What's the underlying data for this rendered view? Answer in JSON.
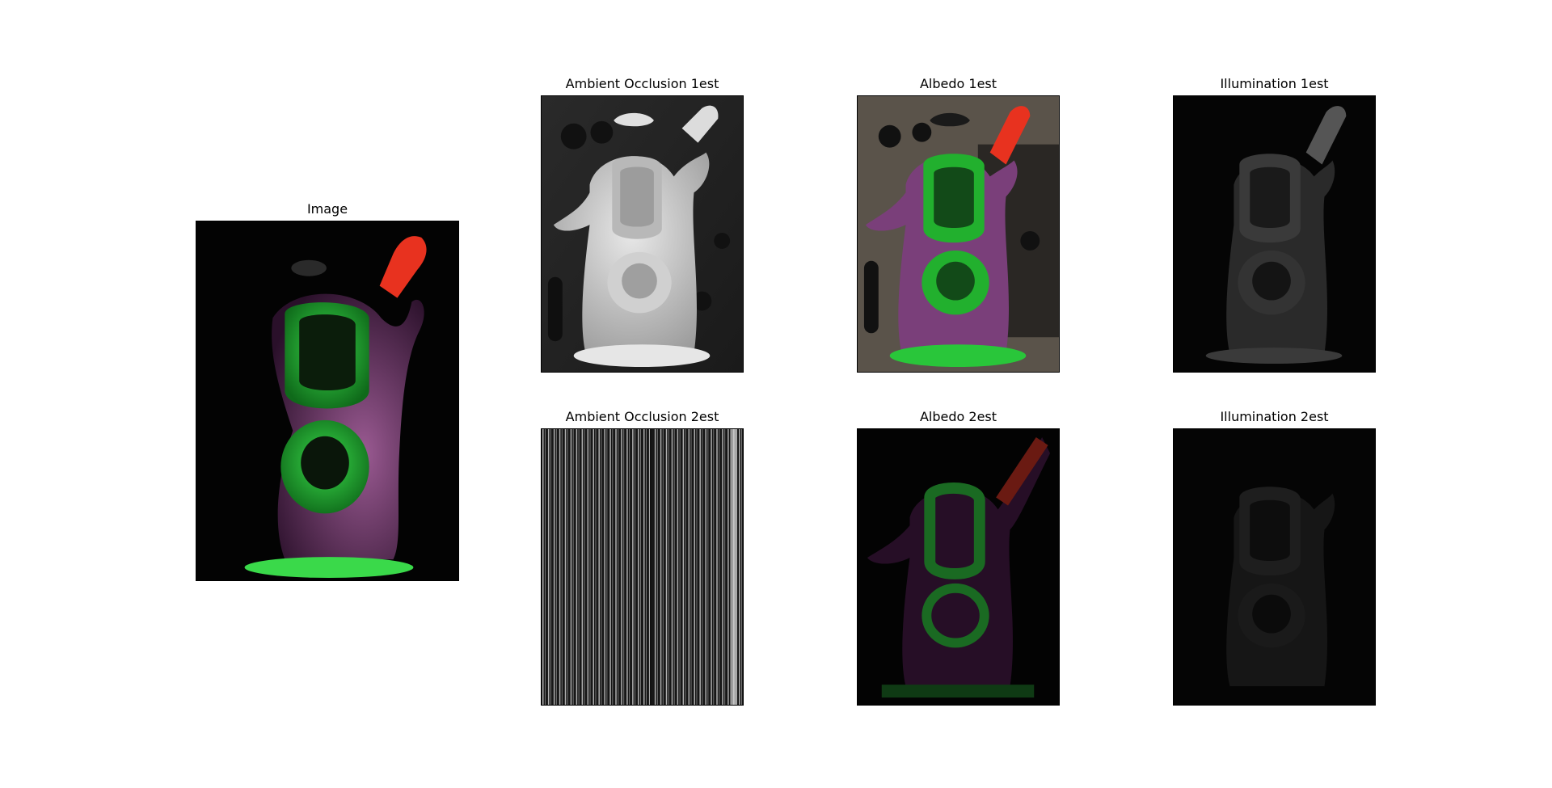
{
  "panels": [
    {
      "id": "image",
      "title": "Image"
    },
    {
      "id": "ao1",
      "title": "Ambient Occlusion 1est"
    },
    {
      "id": "albedo1",
      "title": "Albedo 1est"
    },
    {
      "id": "illum1",
      "title": "Illumination 1est"
    },
    {
      "id": "ao2",
      "title": "Ambient Occlusion 2est"
    },
    {
      "id": "albedo2",
      "title": "Albedo 2est"
    },
    {
      "id": "illum2",
      "title": "Illumination 2est"
    }
  ],
  "colors": {
    "figure_background": "#ffffff",
    "frame": "#000000",
    "figurine_green": "#2fbf3a",
    "figurine_purple": "#8a4a86",
    "figurine_red": "#e8321f",
    "ao_gray": "#cfcfcf",
    "background_dark": "#050505"
  }
}
